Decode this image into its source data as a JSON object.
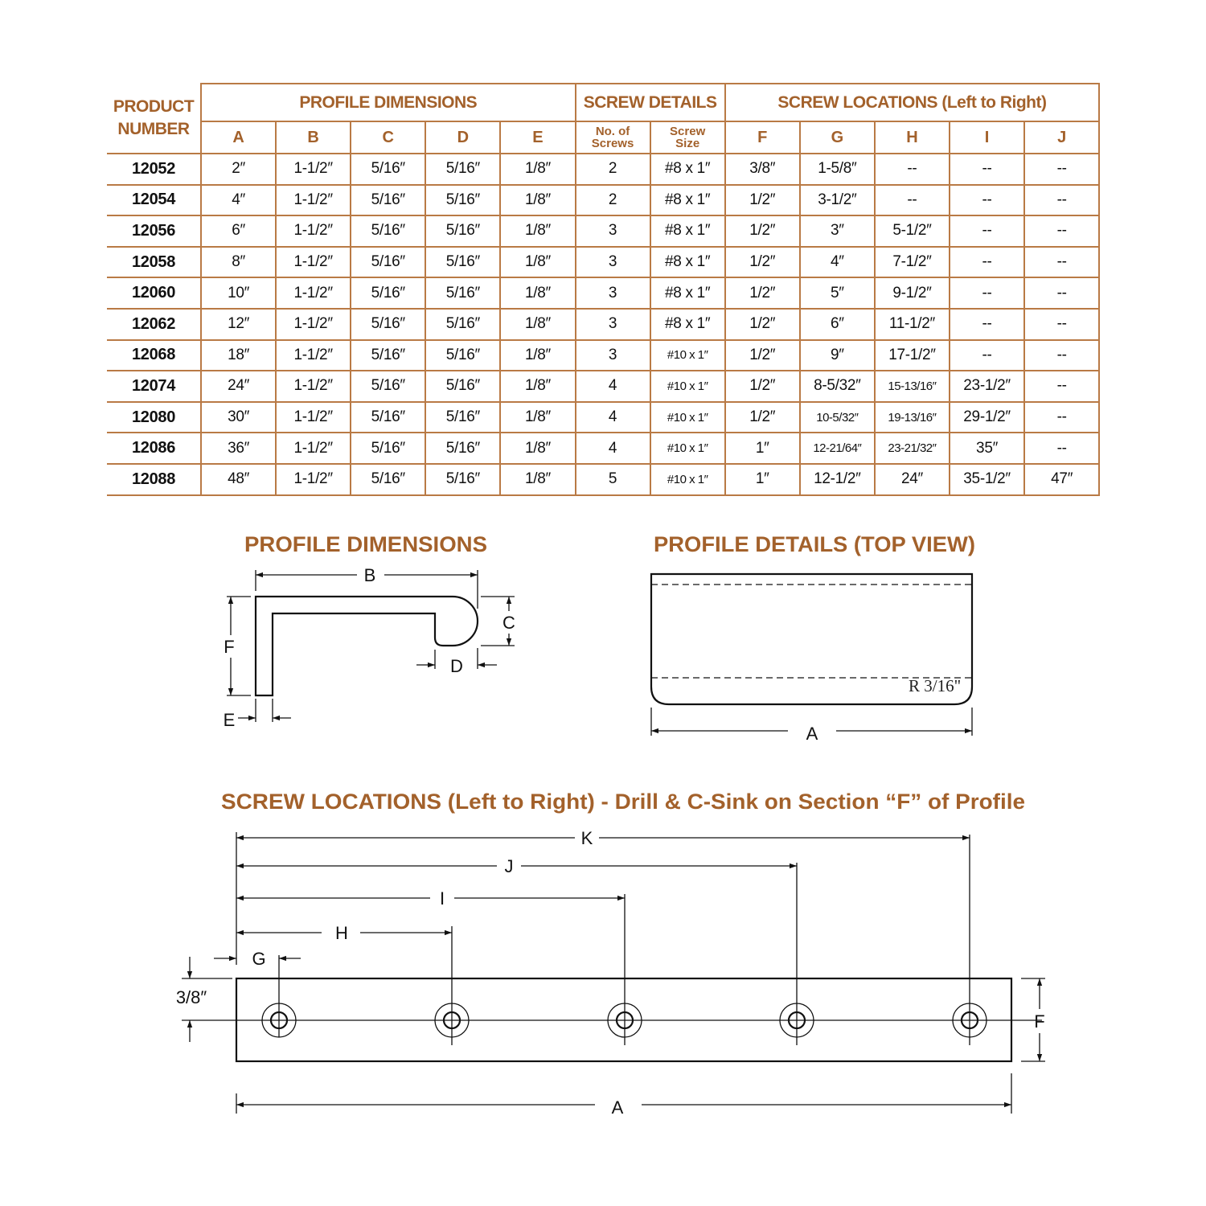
{
  "table": {
    "product_header": [
      "PRODUCT",
      "NUMBER"
    ],
    "groups": {
      "profile_dimensions": "PROFILE DIMENSIONS",
      "screw_details": "SCREW DETAILS",
      "screw_locations": "SCREW LOCATIONS (Left to Right)"
    },
    "columns": [
      "A",
      "B",
      "C",
      "D",
      "E",
      "No. of Screws",
      "Screw Size",
      "F",
      "G",
      "H",
      "I",
      "J"
    ],
    "rows": [
      [
        "12052",
        "2″",
        "1-1/2″",
        "5/16″",
        "5/16″",
        "1/8″",
        "2",
        "#8 x 1″",
        "3/8″",
        "1-5/8″",
        "--",
        "--",
        "--"
      ],
      [
        "12054",
        "4″",
        "1-1/2″",
        "5/16″",
        "5/16″",
        "1/8″",
        "2",
        "#8 x 1″",
        "1/2″",
        "3-1/2″",
        "--",
        "--",
        "--"
      ],
      [
        "12056",
        "6″",
        "1-1/2″",
        "5/16″",
        "5/16″",
        "1/8″",
        "3",
        "#8 x 1″",
        "1/2″",
        "3″",
        "5-1/2″",
        "--",
        "--"
      ],
      [
        "12058",
        "8″",
        "1-1/2″",
        "5/16″",
        "5/16″",
        "1/8″",
        "3",
        "#8 x 1″",
        "1/2″",
        "4″",
        "7-1/2″",
        "--",
        "--"
      ],
      [
        "12060",
        "10″",
        "1-1/2″",
        "5/16″",
        "5/16″",
        "1/8″",
        "3",
        "#8 x 1″",
        "1/2″",
        "5″",
        "9-1/2″",
        "--",
        "--"
      ],
      [
        "12062",
        "12″",
        "1-1/2″",
        "5/16″",
        "5/16″",
        "1/8″",
        "3",
        "#8 x 1″",
        "1/2″",
        "6″",
        "11-1/2″",
        "--",
        "--"
      ],
      [
        "12068",
        "18″",
        "1-1/2″",
        "5/16″",
        "5/16″",
        "1/8″",
        "3",
        "#10 x 1″",
        "1/2″",
        "9″",
        "17-1/2″",
        "--",
        "--"
      ],
      [
        "12074",
        "24″",
        "1-1/2″",
        "5/16″",
        "5/16″",
        "1/8″",
        "4",
        "#10 x 1″",
        "1/2″",
        "8-5/32″",
        "15-13/16″",
        "23-1/2″",
        "--"
      ],
      [
        "12080",
        "30″",
        "1-1/2″",
        "5/16″",
        "5/16″",
        "1/8″",
        "4",
        "#10 x 1″",
        "1/2″",
        "10-5/32″",
        "19-13/16″",
        "29-1/2″",
        "--"
      ],
      [
        "12086",
        "36″",
        "1-1/2″",
        "5/16″",
        "5/16″",
        "1/8″",
        "4",
        "#10 x 1″",
        "1″",
        "12-21/64″",
        "23-21/32″",
        "35″",
        "--"
      ],
      [
        "12088",
        "48″",
        "1-1/2″",
        "5/16″",
        "5/16″",
        "1/8″",
        "5",
        "#10 x 1″",
        "1″",
        "12-1/2″",
        "24″",
        "35-1/2″",
        "47″"
      ]
    ]
  },
  "profile_dimensions": {
    "title": "PROFILE DIMENSIONS",
    "labels": {
      "B": "B",
      "C": "C",
      "D": "D",
      "E": "E",
      "F": "F"
    }
  },
  "profile_details": {
    "title": "PROFILE DETAILS (TOP VIEW)",
    "radius_label": "R 3/16\"",
    "length_label": "A"
  },
  "screw_locations": {
    "title": "SCREW LOCATIONS (Left to Right) - Drill & C-Sink on Section “F” of Profile",
    "labels": {
      "K": "K",
      "J": "J",
      "I": "I",
      "H": "H",
      "G": "G",
      "offset": "3/8″",
      "F": "F",
      "A": "A"
    }
  },
  "colors": {
    "heading": "#a3612b",
    "table_border": "#b97a45",
    "drawing": "#111111"
  }
}
